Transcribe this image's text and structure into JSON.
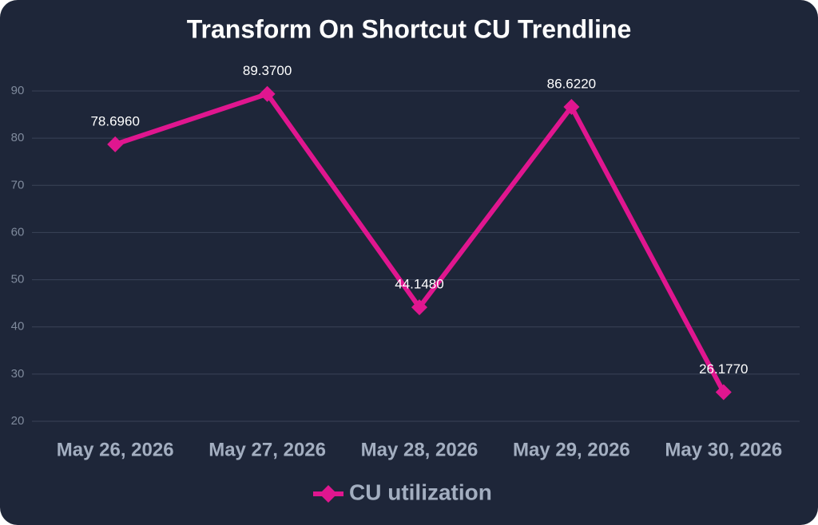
{
  "chart_data": {
    "type": "line",
    "title": "Transform On Shortcut CU Trendline",
    "categories": [
      "May 26, 2026",
      "May 27, 2026",
      "May 28, 2026",
      "May 29, 2026",
      "May 30, 2026"
    ],
    "series": [
      {
        "name": "CU utilization",
        "color": "#e0168f",
        "values": [
          78.696,
          89.37,
          44.148,
          86.622,
          26.177
        ],
        "value_labels": [
          "78.6960",
          "89.3700",
          "44.1480",
          "86.6220",
          "26.1770"
        ]
      }
    ],
    "ylim": [
      20,
      90
    ],
    "yticks": [
      20,
      30,
      40,
      50,
      60,
      70,
      80,
      90
    ],
    "grid": true,
    "legend": "bottom"
  }
}
